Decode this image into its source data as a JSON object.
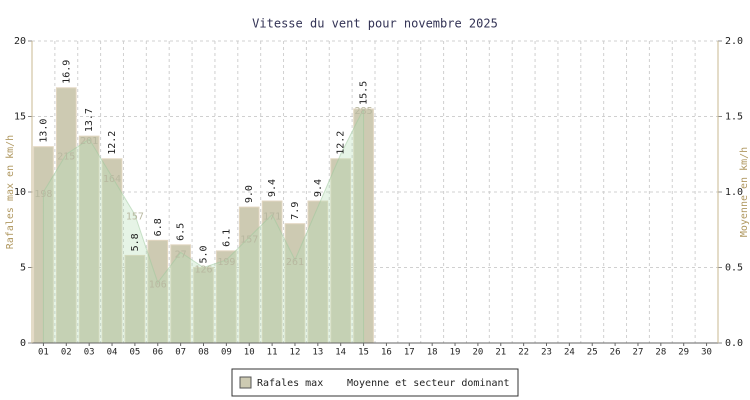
{
  "chart_data": {
    "type": "bar",
    "title": "Vitesse du vent pour novembre 2025",
    "ylabel": "Rafales max en km/h",
    "y2label": "Moyenne en km/h",
    "categories": [
      "01",
      "02",
      "03",
      "04",
      "05",
      "06",
      "07",
      "08",
      "09",
      "10",
      "11",
      "12",
      "13",
      "14",
      "15",
      "16",
      "17",
      "18",
      "19",
      "20",
      "21",
      "22",
      "23",
      "24",
      "25",
      "26",
      "27",
      "28",
      "29",
      "30"
    ],
    "series": [
      {
        "name": "Rafales max",
        "color": "#cdcab2",
        "values": [
          13.0,
          16.9,
          13.7,
          12.2,
          5.8,
          6.8,
          6.5,
          5.0,
          6.1,
          9.0,
          9.4,
          7.9,
          9.4,
          12.2,
          15.5,
          null,
          null,
          null,
          null,
          null,
          null,
          null,
          null,
          null,
          null,
          null,
          null,
          null,
          null,
          null
        ],
        "value_labels": [
          "13.0",
          "16.9",
          "13.7",
          "12.2",
          "5.8",
          "6.8",
          "6.5",
          "5.0",
          "6.1",
          "9.0",
          "9.4",
          "7.9",
          "9.4",
          "12.2",
          "15.5",
          null,
          null,
          null,
          null,
          null,
          null,
          null,
          null,
          null,
          null,
          null,
          null,
          null,
          null,
          null
        ]
      },
      {
        "name": "Moyenne et secteur dominant",
        "color": "#b8e0b8",
        "axis": "y2",
        "values": [
          1.0,
          1.25,
          1.35,
          1.1,
          0.85,
          0.4,
          0.6,
          0.5,
          0.55,
          0.7,
          0.85,
          0.55,
          0.9,
          1.25,
          1.55,
          null,
          null,
          null,
          null,
          null,
          null,
          null,
          null,
          null,
          null,
          null,
          null,
          null,
          null,
          null
        ],
        "sectors": [
          198,
          215,
          201,
          164,
          157,
          106,
          27,
          126,
          199,
          157,
          171,
          261,
          null,
          null,
          285,
          null,
          null,
          null,
          null,
          null,
          null,
          null,
          null,
          null,
          null,
          null,
          null,
          null,
          null,
          null
        ]
      }
    ],
    "ylim": [
      0,
      20
    ],
    "yticks": [
      0,
      5,
      10,
      15,
      20
    ],
    "y2lim": [
      0,
      2
    ],
    "y2ticks": [
      {
        "value": 0,
        "label": "0.0"
      },
      {
        "value": 0.5,
        "label": "0.5"
      },
      {
        "value": 1,
        "label": "1.0"
      },
      {
        "value": 1.5,
        "label": "1.5"
      },
      {
        "value": 2,
        "label": "2.0"
      }
    ],
    "grid": true
  }
}
